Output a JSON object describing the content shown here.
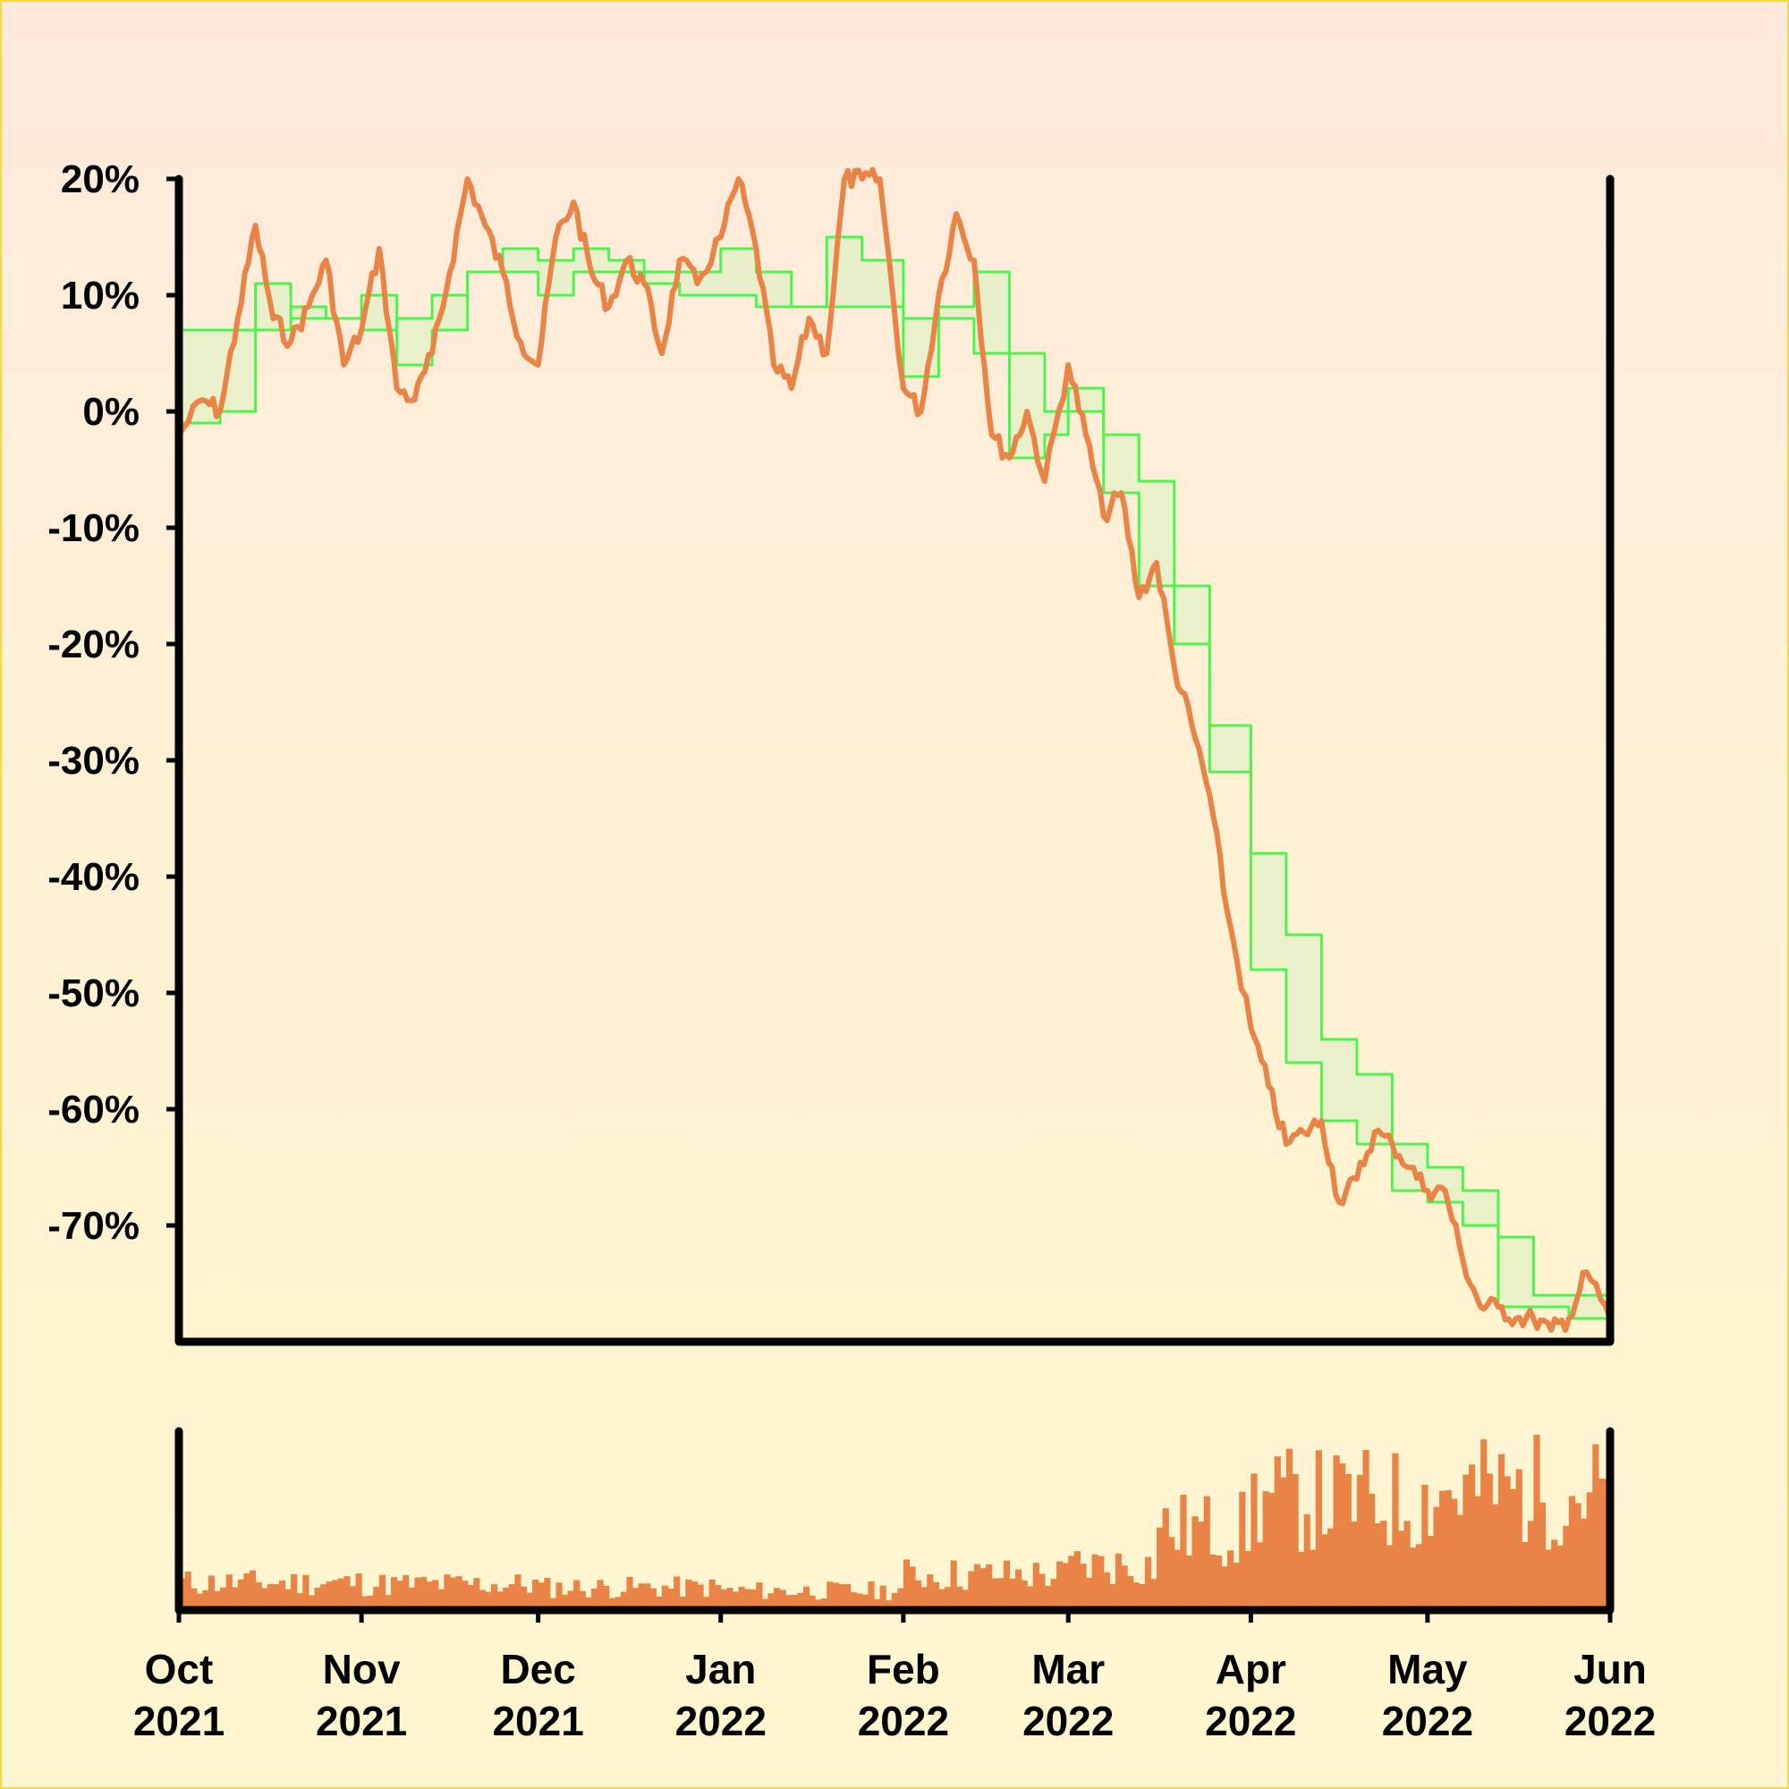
{
  "chart_data": [
    {
      "type": "line",
      "title": "",
      "xlabel": "",
      "ylabel": "",
      "x_range": [
        "2021-10-01",
        "2022-06-01"
      ],
      "ylim": [
        -80,
        20
      ],
      "y_ticks": [
        20,
        10,
        0,
        -10,
        -20,
        -30,
        -40,
        -50,
        -60,
        -70
      ],
      "y_tick_labels": [
        "20%",
        "10%",
        "0%",
        "-10%",
        "-20%",
        "-30%",
        "-40%",
        "-50%",
        "-60%",
        "-70%"
      ],
      "grid": false,
      "legend": "none",
      "colors": {
        "price": "#ea8346",
        "band": "#4ef44e",
        "band_fill": "#e6f0c8"
      },
      "series": [
        {
          "role": "price",
          "x": [
            "2021-10-01",
            "2021-10-05",
            "2021-10-08",
            "2021-10-11",
            "2021-10-14",
            "2021-10-17",
            "2021-10-20",
            "2021-10-23",
            "2021-10-26",
            "2021-10-29",
            "2021-11-01",
            "2021-11-04",
            "2021-11-07",
            "2021-11-10",
            "2021-11-13",
            "2021-11-16",
            "2021-11-19",
            "2021-11-22",
            "2021-11-25",
            "2021-11-28",
            "2021-12-01",
            "2021-12-04",
            "2021-12-07",
            "2021-12-10",
            "2021-12-13",
            "2021-12-16",
            "2021-12-19",
            "2021-12-22",
            "2021-12-25",
            "2021-12-28",
            "2022-01-01",
            "2022-01-04",
            "2022-01-07",
            "2022-01-10",
            "2022-01-13",
            "2022-01-16",
            "2022-01-19",
            "2022-01-22",
            "2022-01-25",
            "2022-01-28",
            "2022-02-01",
            "2022-02-04",
            "2022-02-07",
            "2022-02-10",
            "2022-02-13",
            "2022-02-16",
            "2022-02-19",
            "2022-02-22",
            "2022-02-25",
            "2022-03-01",
            "2022-03-04",
            "2022-03-07",
            "2022-03-10",
            "2022-03-13",
            "2022-03-16",
            "2022-03-19",
            "2022-03-22",
            "2022-03-25",
            "2022-03-28",
            "2022-04-01",
            "2022-04-04",
            "2022-04-07",
            "2022-04-10",
            "2022-04-13",
            "2022-04-16",
            "2022-04-19",
            "2022-04-22",
            "2022-04-25",
            "2022-04-28",
            "2022-05-01",
            "2022-05-04",
            "2022-05-07",
            "2022-05-10",
            "2022-05-13",
            "2022-05-16",
            "2022-05-19",
            "2022-05-22",
            "2022-05-25",
            "2022-05-28",
            "2022-06-01"
          ],
          "values": [
            -2,
            1,
            0,
            8,
            16,
            8,
            6,
            9,
            13,
            4,
            7,
            14,
            2,
            1,
            5,
            12,
            20,
            16,
            12,
            6,
            4,
            15,
            18,
            12,
            9,
            13,
            11,
            5,
            13,
            11,
            15,
            20,
            14,
            4,
            2,
            8,
            5,
            20,
            20,
            20,
            2,
            0,
            10,
            17,
            13,
            -2,
            -4,
            0,
            -6,
            4,
            -2,
            -9,
            -7,
            -16,
            -13,
            -22,
            -27,
            -33,
            -43,
            -53,
            -58,
            -63,
            -62,
            -61,
            -68,
            -66,
            -62,
            -63,
            -65,
            -67,
            -67,
            -73,
            -77,
            -77,
            -78,
            -78,
            -79,
            -78,
            -74,
            -78
          ]
        },
        {
          "role": "band-upper",
          "x": [
            "2021-10-01",
            "2021-10-08",
            "2021-10-14",
            "2021-10-20",
            "2021-10-26",
            "2021-11-01",
            "2021-11-07",
            "2021-11-13",
            "2021-11-19",
            "2021-11-25",
            "2021-12-01",
            "2021-12-07",
            "2021-12-13",
            "2021-12-19",
            "2021-12-25",
            "2022-01-01",
            "2022-01-07",
            "2022-01-13",
            "2022-01-19",
            "2022-01-25",
            "2022-02-01",
            "2022-02-07",
            "2022-02-13",
            "2022-02-19",
            "2022-02-25",
            "2022-03-01",
            "2022-03-07",
            "2022-03-13",
            "2022-03-19",
            "2022-03-25",
            "2022-04-01",
            "2022-04-07",
            "2022-04-13",
            "2022-04-19",
            "2022-04-25",
            "2022-05-01",
            "2022-05-07",
            "2022-05-13",
            "2022-05-19",
            "2022-05-25",
            "2022-06-01"
          ],
          "values": [
            7,
            7,
            7,
            9,
            8,
            7,
            8,
            10,
            12,
            14,
            13,
            14,
            13,
            12,
            12,
            14,
            12,
            9,
            15,
            13,
            8,
            9,
            12,
            5,
            0,
            2,
            -2,
            -6,
            -15,
            -27,
            -38,
            -45,
            -54,
            -57,
            -63,
            -65,
            -67,
            -71,
            -76,
            -76,
            -79
          ]
        },
        {
          "role": "band-lower",
          "x": [
            "2021-10-01",
            "2021-10-08",
            "2021-10-14",
            "2021-10-20",
            "2021-10-26",
            "2021-11-01",
            "2021-11-07",
            "2021-11-13",
            "2021-11-19",
            "2021-11-25",
            "2021-12-01",
            "2021-12-07",
            "2021-12-13",
            "2021-12-19",
            "2021-12-25",
            "2022-01-01",
            "2022-01-07",
            "2022-01-13",
            "2022-01-19",
            "2022-01-25",
            "2022-02-01",
            "2022-02-07",
            "2022-02-13",
            "2022-02-19",
            "2022-02-25",
            "2022-03-01",
            "2022-03-07",
            "2022-03-13",
            "2022-03-19",
            "2022-03-25",
            "2022-04-01",
            "2022-04-07",
            "2022-04-13",
            "2022-04-19",
            "2022-04-25",
            "2022-05-01",
            "2022-05-07",
            "2022-05-13",
            "2022-05-19",
            "2022-05-25",
            "2022-06-01"
          ],
          "values": [
            -1,
            0,
            11,
            8,
            8,
            10,
            4,
            7,
            12,
            12,
            10,
            12,
            12,
            11,
            10,
            10,
            9,
            9,
            9,
            9,
            3,
            8,
            5,
            -4,
            -2,
            0,
            -7,
            -15,
            -20,
            -31,
            -48,
            -56,
            -61,
            -63,
            -67,
            -68,
            -70,
            -77,
            -77,
            -78,
            -79
          ]
        }
      ]
    },
    {
      "type": "bar",
      "role": "volume",
      "x_range": [
        "2021-10-01",
        "2022-06-01"
      ],
      "ylim": [
        0,
        100
      ],
      "x_ticks": [
        "2021-10-01",
        "2021-11-01",
        "2021-12-01",
        "2022-01-01",
        "2022-02-01",
        "2022-03-01",
        "2022-04-01",
        "2022-05-01",
        "2022-06-01"
      ],
      "x_tick_labels": [
        [
          "Oct",
          "2021"
        ],
        [
          "Nov",
          "2021"
        ],
        [
          "Dec",
          "2021"
        ],
        [
          "Jan",
          "2022"
        ],
        [
          "Feb",
          "2022"
        ],
        [
          "Mar",
          "2022"
        ],
        [
          "Apr",
          "2022"
        ],
        [
          "May",
          "2022"
        ],
        [
          "Jun",
          "2022"
        ]
      ],
      "color": "#ea8346",
      "segments": [
        {
          "start": "2021-10-01",
          "end": "2021-11-01",
          "level": 17
        },
        {
          "start": "2021-11-01",
          "end": "2021-12-01",
          "level": 16
        },
        {
          "start": "2021-12-01",
          "end": "2022-01-01",
          "level": 14
        },
        {
          "start": "2022-01-01",
          "end": "2022-02-01",
          "level": 12
        },
        {
          "start": "2022-02-01",
          "end": "2022-03-01",
          "level": 22
        },
        {
          "start": "2022-03-01",
          "end": "2022-03-16",
          "level": 28
        },
        {
          "start": "2022-03-16",
          "end": "2022-04-01",
          "level": 50
        },
        {
          "start": "2022-04-01",
          "end": "2022-05-01",
          "level": 68
        },
        {
          "start": "2022-05-01",
          "end": "2022-06-01",
          "level": 74
        }
      ]
    }
  ]
}
